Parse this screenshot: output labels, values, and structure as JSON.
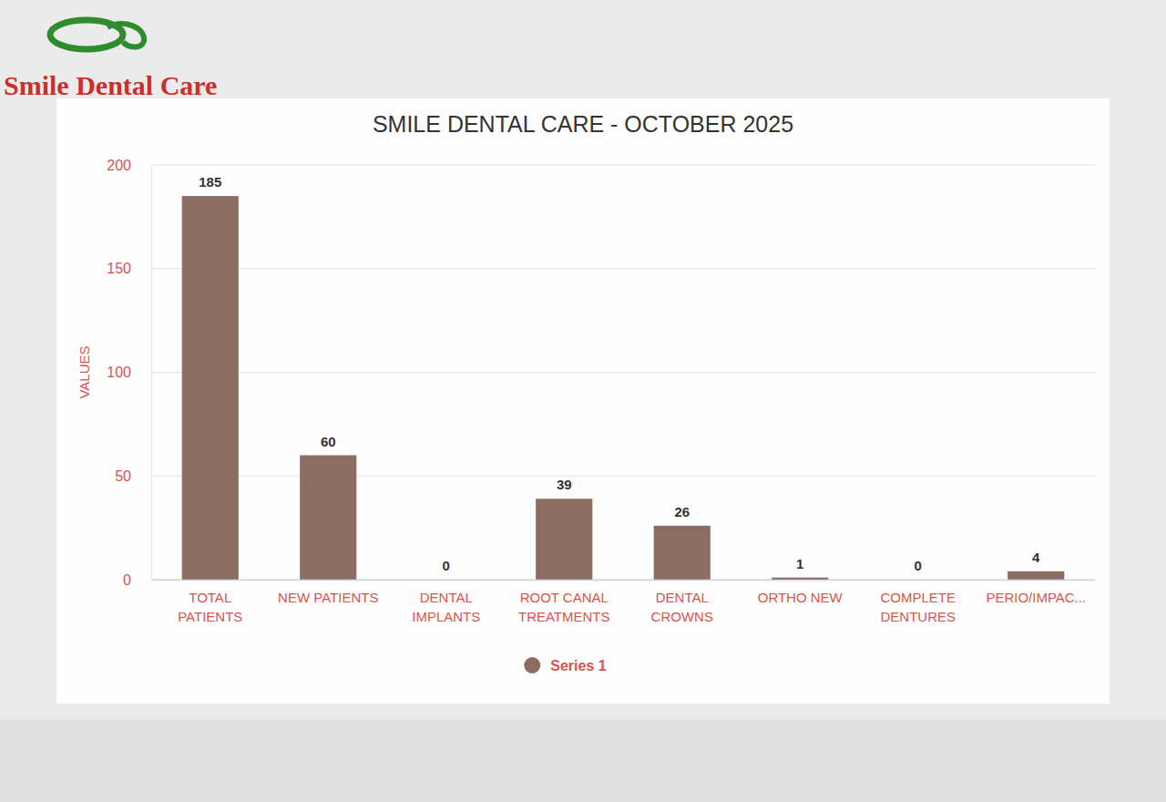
{
  "header": {
    "logo_text": "Smile Dental Care"
  },
  "chart_data": {
    "type": "bar",
    "title": "SMILE DENTAL CARE - OCTOBER 2025",
    "y_label": "VALUES",
    "categories": [
      "TOTAL PATIENTS",
      "NEW PATIENTS",
      "DENTAL IMPLANTS",
      "ROOT CANAL TREATMENTS",
      "DENTAL CROWNS",
      "ORTHO NEW",
      "COMPLETE DENTURES",
      "PERIO/IMPAC..."
    ],
    "series": [
      {
        "name": "Series 1",
        "color": "#8c6d62",
        "values": [
          185,
          60,
          0,
          39,
          26,
          1,
          0,
          4
        ]
      }
    ],
    "ylim": [
      0,
      200
    ],
    "yticks": [
      0,
      50,
      100,
      150,
      200
    ],
    "grid": true,
    "legend": "bottom",
    "data_labels": true
  }
}
